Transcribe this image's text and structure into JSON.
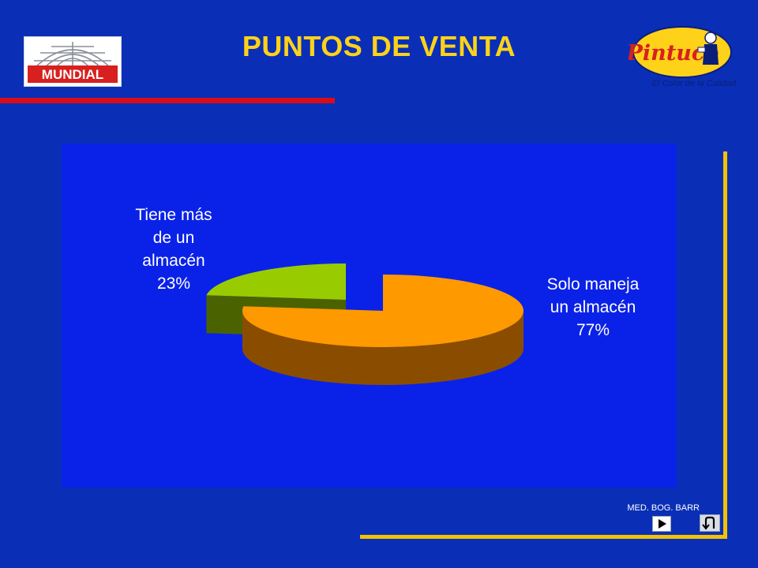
{
  "header": {
    "title": "PUNTOS DE VENTA",
    "left_logo_text": "MUNDIAL",
    "right_logo_text": "Pintuco",
    "tagline": "El Color de la Calidad"
  },
  "footer": {
    "code": "MED. BOG. BARR",
    "next_icon": "play-triangle-icon",
    "return_icon": "u-turn-return-icon"
  },
  "colors": {
    "background": "#0a2fb6",
    "title": "#ffd21a",
    "accent_rule": "#d80d1a",
    "frame": "#f2c200",
    "slice_large_top": "#ff9900",
    "slice_large_side": "#8a4d00",
    "slice_small_top": "#99cc00",
    "slice_small_side": "#4a6300"
  },
  "chart_data": {
    "type": "pie",
    "title": "",
    "categories": [
      "Solo maneja un almacén",
      "Tiene más de un almacén"
    ],
    "values": [
      77,
      23
    ],
    "unit": "%",
    "labels": [
      {
        "lines": [
          "Solo maneja",
          "un almacén",
          "77%"
        ]
      },
      {
        "lines": [
          "Tiene más",
          "de un",
          "almacén",
          "23%"
        ]
      }
    ],
    "exploded": true,
    "three_d": true,
    "legend": "none"
  }
}
